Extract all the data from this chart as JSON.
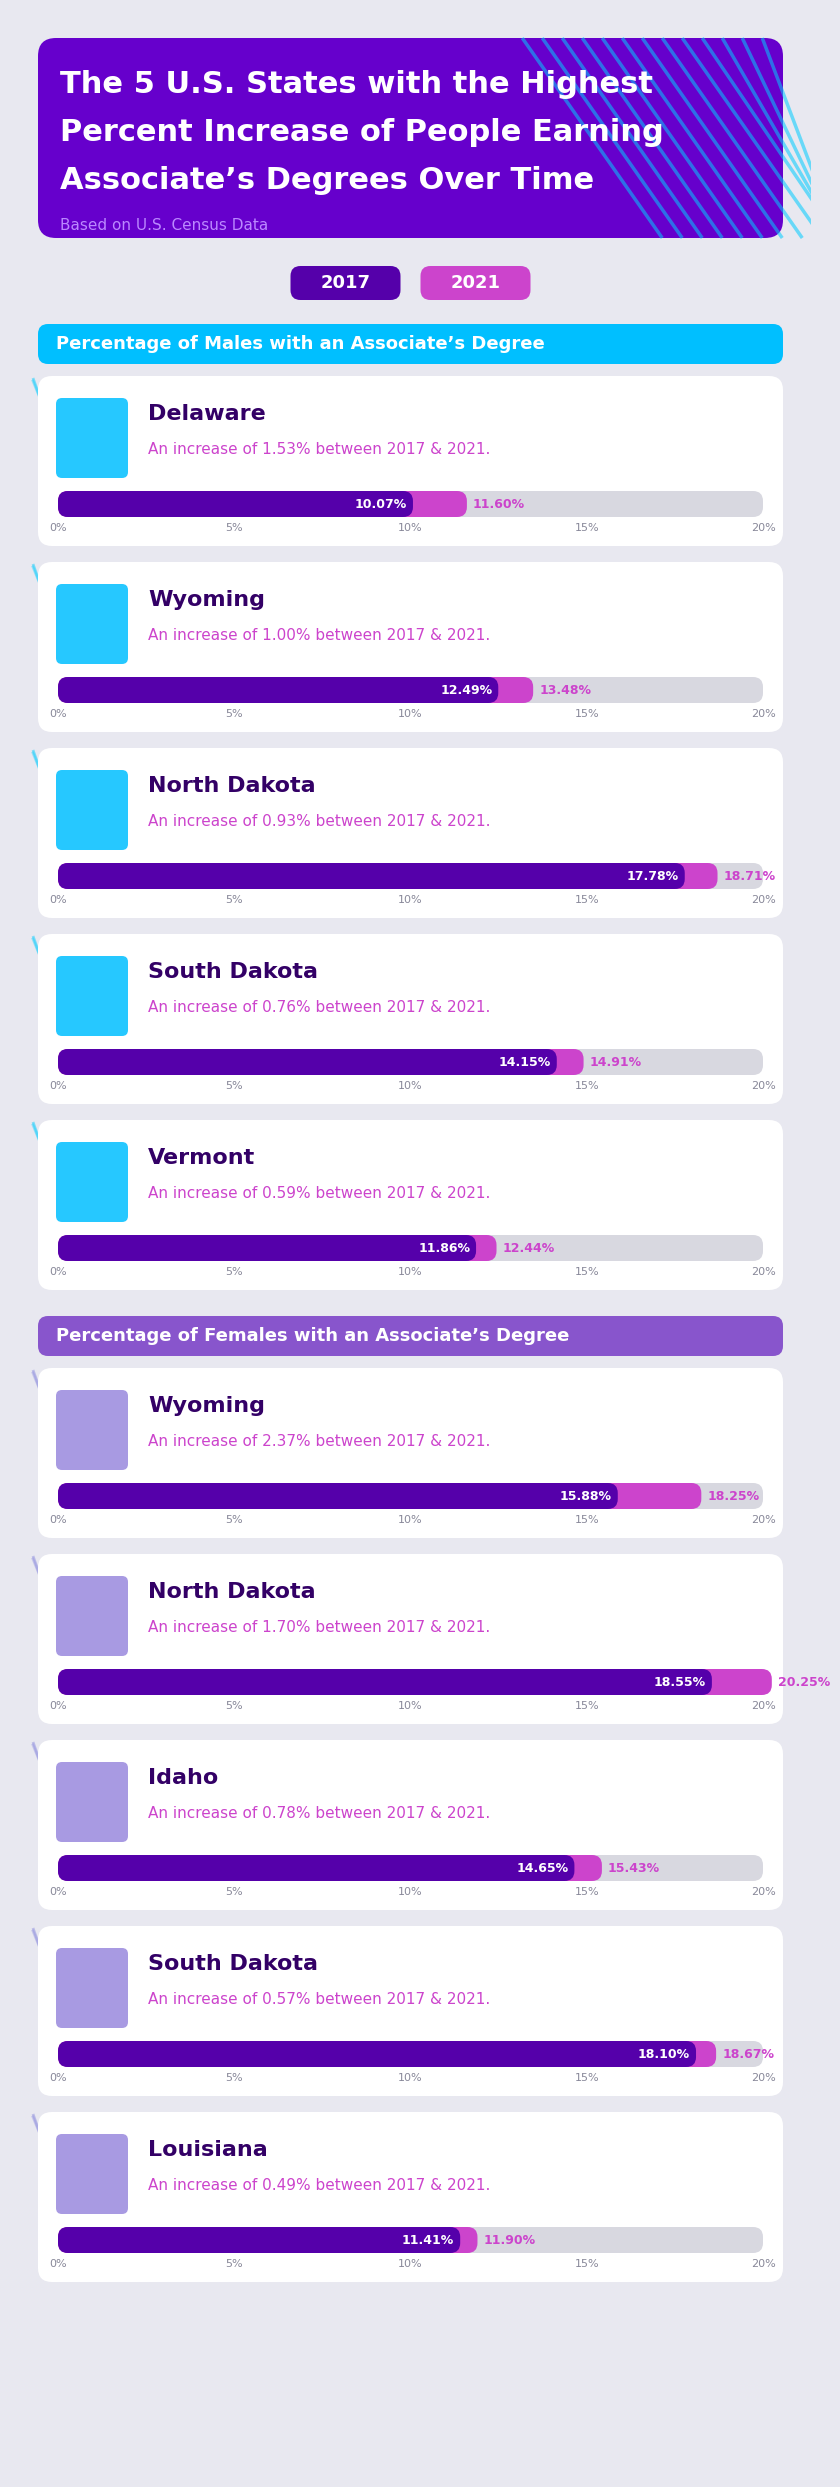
{
  "title_line1": "The 5 U.S. States with the Highest",
  "title_line2": "Percent Increase of People Earning",
  "title_line3": "Associate’s Degrees Over Time",
  "subtitle": "Based on U.S. Census Data",
  "legend_2017": "2017",
  "legend_2021": "2021",
  "section_male": "Percentage of Males with an Associate’s Degree",
  "section_female": "Percentage of Females with an Associate’s Degree",
  "bg_color": "#e8e8f0",
  "header_bg": "#6600cc",
  "section_male_color": "#00bfff",
  "section_female_color": "#8855cc",
  "bar_color_2017": "#5500aa",
  "bar_color_2021": "#cc44cc",
  "bar_bg_color": "#d8d8e0",
  "card_bg": "#ffffff",
  "title_color": "#ffffff",
  "subtitle_color": "#bb88ff",
  "state_name_color": "#330066",
  "increase_text_color": "#cc44cc",
  "tick_color": "#888899",
  "xmax": 20,
  "stripe_color": "#00ccff",
  "stripe_color2": "#8888dd",
  "males": [
    {
      "state": "Delaware",
      "increase": 1.53,
      "val2017": 10.07,
      "val2021": 11.6
    },
    {
      "state": "Wyoming",
      "increase": 1.0,
      "val2017": 12.49,
      "val2021": 13.48
    },
    {
      "state": "North Dakota",
      "increase": 0.93,
      "val2017": 17.78,
      "val2021": 18.71
    },
    {
      "state": "South Dakota",
      "increase": 0.76,
      "val2017": 14.15,
      "val2021": 14.91
    },
    {
      "state": "Vermont",
      "increase": 0.59,
      "val2017": 11.86,
      "val2021": 12.44
    }
  ],
  "females": [
    {
      "state": "Wyoming",
      "increase": 2.37,
      "val2017": 15.88,
      "val2021": 18.25
    },
    {
      "state": "North Dakota",
      "increase": 1.7,
      "val2017": 18.55,
      "val2021": 20.25
    },
    {
      "state": "Idaho",
      "increase": 0.78,
      "val2017": 14.65,
      "val2021": 15.43
    },
    {
      "state": "South Dakota",
      "increase": 0.57,
      "val2017": 18.1,
      "val2021": 18.67
    },
    {
      "state": "Louisiana",
      "increase": 0.49,
      "val2017": 11.41,
      "val2021": 11.9
    }
  ]
}
